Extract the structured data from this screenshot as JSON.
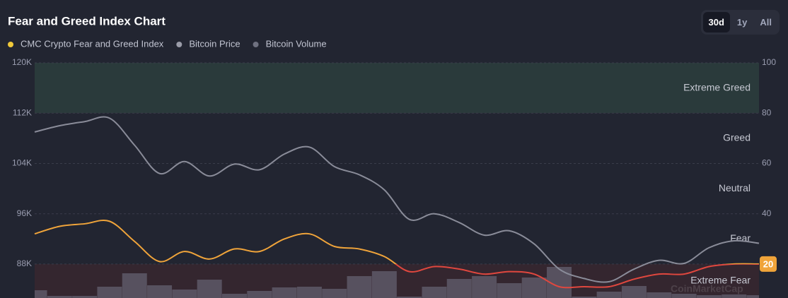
{
  "chart_data": {
    "type": "line",
    "title": "Fear and Greed Index Chart",
    "range_buttons": [
      "30d",
      "1y",
      "All"
    ],
    "active_button": 0,
    "series": [
      {
        "name": "CMC Crypto Fear and Greed Index",
        "color": "#f0a43a",
        "low_color": "#e0473e",
        "axis": "y2",
        "values": [
          32,
          35,
          36,
          37,
          29,
          21,
          25,
          22,
          26,
          25,
          30,
          32,
          27,
          26,
          23,
          17,
          19,
          18,
          16,
          17,
          16,
          11,
          11,
          11,
          14,
          16,
          16,
          19,
          20,
          20
        ]
      },
      {
        "name": "Bitcoin Price",
        "color": "#8a8c99",
        "values": [
          109000,
          110000,
          110650,
          111200,
          106900,
          102400,
          104300,
          102000,
          103900,
          103000,
          105500,
          106600,
          103500,
          102200,
          99800,
          95100,
          96000,
          94600,
          92600,
          93300,
          91200,
          87200,
          85700,
          85200,
          87200,
          88600,
          88100,
          90600,
          91700,
          91300
        ]
      },
      {
        "name": "Bitcoin Volume",
        "color": "#5e5967",
        "type": "bar",
        "values": [
          11,
          3,
          3,
          16,
          35,
          18,
          12,
          26,
          6,
          10,
          15,
          16,
          13,
          31,
          38,
          2,
          16,
          27,
          31,
          21,
          29,
          44,
          2,
          9,
          17,
          8,
          6,
          4,
          5,
          4
        ]
      }
    ],
    "ylim": [
      82600,
      120000
    ],
    "yticks": [
      {
        "value": 88000,
        "label": "88K"
      },
      {
        "value": 96000,
        "label": "96K"
      },
      {
        "value": 104000,
        "label": "104K"
      },
      {
        "value": 112000,
        "label": "112K"
      },
      {
        "value": 120000,
        "label": "120K"
      }
    ],
    "y2lim": [
      6.5,
      100
    ],
    "y2ticks": [
      20,
      40,
      60,
      80,
      100
    ],
    "zones": [
      {
        "label": "Extreme Greed",
        "range": [
          80,
          100
        ],
        "fill": "#2a3a3b"
      },
      {
        "label": "Greed",
        "range": [
          60,
          80
        ],
        "fill": null
      },
      {
        "label": "Neutral",
        "range": [
          40,
          60
        ],
        "fill": null
      },
      {
        "label": "Fear",
        "range": [
          20,
          40
        ],
        "fill": null
      },
      {
        "label": "Extreme Fear",
        "range": [
          6.5,
          20
        ],
        "fill": "#34262f"
      }
    ],
    "grid": true,
    "watermark": "CoinMarketCap"
  }
}
